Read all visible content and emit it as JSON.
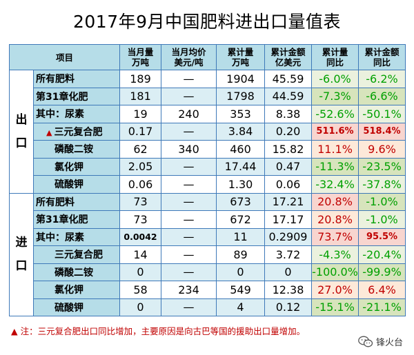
{
  "title": "2017年9月中国肥料进出口量值表",
  "header": {
    "item": "项目",
    "c1a": "当月量",
    "c1b": "万吨",
    "c2a": "当月均价",
    "c2b": "美元/吨",
    "c3a": "累计量",
    "c3b": "万吨",
    "c4a": "累计金额",
    "c4b": "亿美元",
    "c5a": "累计量",
    "c5b": "同比",
    "c6a": "累计金额",
    "c6b": "同比"
  },
  "export_label_1": "出",
  "export_label_2": "口",
  "import_label_1": "进",
  "import_label_2": "口",
  "export_rows": [
    {
      "name": "所有肥料",
      "m": "189",
      "p": "—",
      "c": "1904",
      "v": "45.59",
      "cy": "-6.0%",
      "vy": "-6.2%"
    },
    {
      "name": "第31章化肥",
      "m": "181",
      "p": "—",
      "c": "1798",
      "v": "44.59",
      "cy": "-7.3%",
      "vy": "-6.6%"
    },
    {
      "name": "其中：尿素",
      "m": "19",
      "p": "240",
      "c": "353",
      "v": "8.38",
      "cy": "-52.6%",
      "vy": "-50.1%"
    },
    {
      "name": "三元复合肥",
      "m": "0.17",
      "p": "—",
      "c": "3.84",
      "v": "0.20",
      "cy": "511.6%",
      "vy": "518.4%"
    },
    {
      "name": "磷酸二铵",
      "m": "62",
      "p": "340",
      "c": "460",
      "v": "15.82",
      "cy": "11.1%",
      "vy": "9.6%"
    },
    {
      "name": "氯化钾",
      "m": "2.05",
      "p": "—",
      "c": "17.44",
      "v": "0.47",
      "cy": "-11.3%",
      "vy": "-23.5%"
    },
    {
      "name": "硫酸钾",
      "m": "0.06",
      "p": "—",
      "c": "1.30",
      "v": "0.06",
      "cy": "-32.4%",
      "vy": "-37.8%"
    }
  ],
  "import_rows": [
    {
      "name": "所有肥料",
      "m": "73",
      "p": "—",
      "c": "673",
      "v": "17.21",
      "cy": "20.8%",
      "vy": "-1.0%"
    },
    {
      "name": "第31章化肥",
      "m": "73",
      "p": "—",
      "c": "672",
      "v": "17.17",
      "cy": "20.8%",
      "vy": "-1.0%"
    },
    {
      "name": "其中：尿素",
      "m": "0.0042",
      "p": "—",
      "c": "11",
      "v": "0.2909",
      "cy": "73.7%",
      "vy": "95.5%"
    },
    {
      "name": "三元复合肥",
      "m": "14",
      "p": "—",
      "c": "89",
      "v": "3.72",
      "cy": "-4.3%",
      "vy": "-20.4%"
    },
    {
      "name": "磷酸二铵",
      "m": "0",
      "p": "—",
      "c": "0",
      "v": "0",
      "cy": "-100.0%",
      "vy": "-99.9%"
    },
    {
      "name": "氯化钾",
      "m": "58",
      "p": "234",
      "c": "549",
      "v": "12.38",
      "cy": "27.0%",
      "vy": "6.4%"
    },
    {
      "name": "硫酸钾",
      "m": "0",
      "p": "—",
      "c": "4",
      "v": "0.12",
      "cy": "-15.1%",
      "vy": "-21.1%"
    }
  ],
  "note": "注：三元复合肥出口同比增加，主要原因是向古巴等国的援助出口量增加。",
  "brand": "锋火台",
  "colors": {
    "header_bg": "#b6dde8",
    "positive_red": "#c00000",
    "negative_green": "#00a000",
    "border": "#3d78b8"
  },
  "icons": {
    "marker": "warning-triangle-icon",
    "brand_logo": "wechat-icon"
  }
}
